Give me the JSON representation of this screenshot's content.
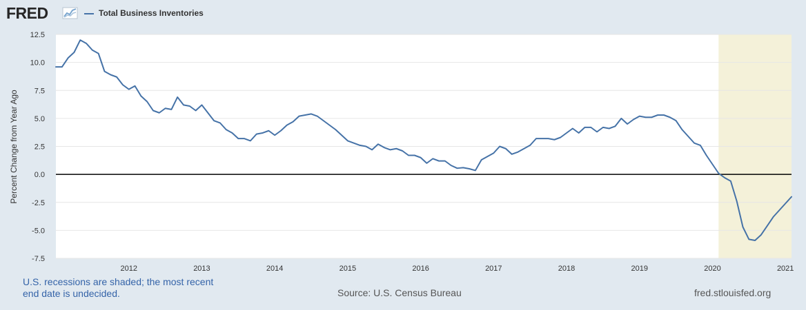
{
  "header": {
    "logo_text": "FRED",
    "logo_icon": "chart-trend-icon",
    "legend_label": "Total Business Inventories",
    "series_color": "#4572a7"
  },
  "footer": {
    "recession_note": "U.S. recessions are shaded; the most recent end date is undecided.",
    "source": "Source: U.S. Census Bureau",
    "url": "fred.stlouisfed.org"
  },
  "chart_data": {
    "type": "line",
    "ylabel": "Percent Change from Year Ago",
    "ylim": [
      -7.5,
      12.5
    ],
    "yticks": [
      "12.5",
      "10.0",
      "7.5",
      "5.0",
      "2.5",
      "0.0",
      "-2.5",
      "-5.0",
      "-7.5"
    ],
    "ytick_values": [
      12.5,
      10.0,
      7.5,
      5.0,
      2.5,
      0.0,
      -2.5,
      -5.0,
      -7.5
    ],
    "xticks": [
      "2012",
      "2013",
      "2014",
      "2015",
      "2016",
      "2017",
      "2018",
      "2019",
      "2020",
      "2021"
    ],
    "x_start": "2011-01",
    "x_end": "2021-02",
    "grid": true,
    "zero_line": true,
    "recession_shading": {
      "start": "2020-02",
      "end": "2021-02",
      "color": "#f4f1d9"
    },
    "series": [
      {
        "name": "Total Business Inventories",
        "color": "#4572a7",
        "start": "2011-01",
        "frequency": "monthly",
        "values": [
          9.6,
          9.6,
          10.4,
          10.9,
          12.0,
          11.7,
          11.1,
          10.8,
          9.2,
          8.9,
          8.7,
          8.0,
          7.6,
          7.9,
          7.0,
          6.5,
          5.7,
          5.5,
          5.9,
          5.8,
          6.9,
          6.2,
          6.1,
          5.7,
          6.2,
          5.5,
          4.8,
          4.6,
          4.0,
          3.7,
          3.2,
          3.2,
          3.0,
          3.6,
          3.7,
          3.9,
          3.5,
          3.9,
          4.4,
          4.7,
          5.2,
          5.3,
          5.4,
          5.2,
          4.8,
          4.4,
          4.0,
          3.5,
          3.0,
          2.8,
          2.6,
          2.5,
          2.2,
          2.7,
          2.4,
          2.2,
          2.3,
          2.1,
          1.7,
          1.7,
          1.5,
          1.0,
          1.4,
          1.2,
          1.2,
          0.8,
          0.55,
          0.6,
          0.5,
          0.35,
          1.3,
          1.6,
          1.9,
          2.5,
          2.3,
          1.8,
          2.0,
          2.3,
          2.6,
          3.2,
          3.2,
          3.2,
          3.1,
          3.3,
          3.7,
          4.1,
          3.7,
          4.2,
          4.2,
          3.8,
          4.2,
          4.1,
          4.3,
          5.0,
          4.5,
          4.9,
          5.2,
          5.1,
          5.1,
          5.3,
          5.3,
          5.1,
          4.8,
          4.0,
          3.4,
          2.8,
          2.6,
          1.7,
          0.9,
          0.1,
          -0.3,
          -0.6,
          -2.4,
          -4.7,
          -5.8,
          -5.9,
          -5.4,
          -4.6,
          -3.8,
          -3.2,
          -2.6,
          -2.0
        ]
      }
    ]
  }
}
